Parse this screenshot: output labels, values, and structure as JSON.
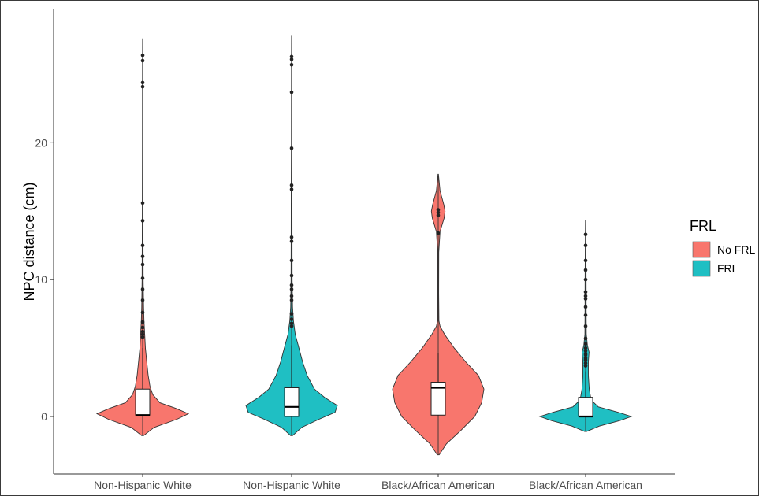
{
  "chart_data": {
    "type": "violin",
    "ylabel": "NPC distance (cm)",
    "xlabel": "",
    "ylim": [
      -4.2,
      29.8
    ],
    "yticks": [
      0,
      10,
      20
    ],
    "grid": false,
    "legend": {
      "title": "FRL",
      "placement": "right",
      "entries": [
        "No FRL",
        "FRL"
      ]
    },
    "colors": {
      "No FRL": "#F8766D",
      "FRL": "#1FBFC3"
    },
    "categories": [
      "Non-Hispanic White",
      "Non-Hispanic White",
      "Black/African American",
      "Black/African American"
    ],
    "groups": [
      {
        "category": "Non-Hispanic White",
        "fill": "No FRL",
        "range": [
          -1.4,
          27.6
        ],
        "box": {
          "q1": 0.1,
          "median": 0.1,
          "q3": 2.0,
          "whisker_low": 0.0,
          "whisker_high": 5.0
        },
        "density": [
          [
            -1.4,
            0.02
          ],
          [
            -0.8,
            0.25
          ],
          [
            -0.2,
            0.75
          ],
          [
            0.2,
            1.0
          ],
          [
            0.6,
            0.72
          ],
          [
            1.0,
            0.38
          ],
          [
            1.6,
            0.22
          ],
          [
            2.2,
            0.16
          ],
          [
            3.0,
            0.12
          ],
          [
            4.0,
            0.09
          ],
          [
            5.0,
            0.06
          ],
          [
            6.0,
            0.045
          ],
          [
            7.0,
            0.03
          ],
          [
            8.0,
            0.02
          ],
          [
            10.0,
            0.012
          ],
          [
            14.0,
            0.008
          ],
          [
            20.0,
            0.006
          ],
          [
            26.0,
            0.004
          ],
          [
            27.6,
            0.002
          ]
        ],
        "outliers": [
          26.4,
          26.0,
          24.4,
          24.1,
          15.6,
          14.3,
          12.5,
          11.7,
          11.1,
          10.1,
          9.3,
          8.5,
          7.6,
          6.9,
          6.5,
          6.2,
          6.0,
          5.8
        ]
      },
      {
        "category": "Non-Hispanic White",
        "fill": "FRL",
        "range": [
          -1.4,
          27.8
        ],
        "box": {
          "q1": 0.0,
          "median": 0.7,
          "q3": 2.1,
          "whisker_low": 0.0,
          "whisker_high": 5.2
        },
        "density": [
          [
            -1.4,
            0.02
          ],
          [
            -0.8,
            0.22
          ],
          [
            -0.2,
            0.6
          ],
          [
            0.3,
            0.95
          ],
          [
            0.8,
            1.0
          ],
          [
            1.4,
            0.72
          ],
          [
            2.0,
            0.5
          ],
          [
            3.0,
            0.34
          ],
          [
            4.0,
            0.24
          ],
          [
            5.0,
            0.16
          ],
          [
            6.0,
            0.08
          ],
          [
            7.0,
            0.04
          ],
          [
            8.0,
            0.02
          ],
          [
            10.0,
            0.012
          ],
          [
            13.0,
            0.01
          ],
          [
            17.0,
            0.008
          ],
          [
            20.0,
            0.006
          ],
          [
            26.0,
            0.004
          ],
          [
            27.8,
            0.002
          ]
        ],
        "outliers": [
          26.3,
          26.1,
          25.7,
          23.7,
          19.6,
          16.9,
          16.6,
          13.1,
          12.8,
          11.4,
          10.3,
          9.6,
          9.3,
          8.8,
          8.5,
          7.5,
          7.1,
          6.8,
          6.6
        ]
      },
      {
        "category": "Black/African American",
        "fill": "No FRL",
        "range": [
          -2.8,
          17.7
        ],
        "box": {
          "q1": 0.1,
          "median": 2.1,
          "q3": 2.5,
          "whisker_low": 0.0,
          "whisker_high": 4.6
        },
        "density": [
          [
            -2.8,
            0.02
          ],
          [
            -2.0,
            0.18
          ],
          [
            -1.0,
            0.5
          ],
          [
            0.0,
            0.8
          ],
          [
            1.0,
            0.95
          ],
          [
            2.0,
            1.0
          ],
          [
            3.0,
            0.88
          ],
          [
            4.0,
            0.6
          ],
          [
            5.0,
            0.35
          ],
          [
            6.0,
            0.14
          ],
          [
            6.6,
            0.04
          ],
          [
            7.0,
            0.015
          ],
          [
            9.0,
            0.01
          ],
          [
            12.0,
            0.012
          ],
          [
            13.5,
            0.04
          ],
          [
            14.5,
            0.13
          ],
          [
            15.0,
            0.15
          ],
          [
            15.5,
            0.12
          ],
          [
            16.5,
            0.04
          ],
          [
            17.7,
            0.005
          ]
        ],
        "outliers": [
          15.1,
          14.9,
          14.7,
          13.4
        ]
      },
      {
        "category": "Black/African American",
        "fill": "FRL",
        "range": [
          -1.1,
          14.3
        ],
        "box": {
          "q1": 0.0,
          "median": 0.0,
          "q3": 1.4,
          "whisker_low": 0.0,
          "whisker_high": 3.3
        },
        "density": [
          [
            -1.1,
            0.02
          ],
          [
            -0.7,
            0.3
          ],
          [
            -0.3,
            0.75
          ],
          [
            0.0,
            1.0
          ],
          [
            0.3,
            0.72
          ],
          [
            0.7,
            0.28
          ],
          [
            1.2,
            0.12
          ],
          [
            2.0,
            0.08
          ],
          [
            3.0,
            0.06
          ],
          [
            4.0,
            0.06
          ],
          [
            4.7,
            0.075
          ],
          [
            5.2,
            0.04
          ],
          [
            6.0,
            0.015
          ],
          [
            8.0,
            0.012
          ],
          [
            9.5,
            0.012
          ],
          [
            12.0,
            0.008
          ],
          [
            14.3,
            0.003
          ]
        ],
        "outliers": [
          13.3,
          12.5,
          11.4,
          10.7,
          10.0,
          9.1,
          8.8,
          8.6,
          8.0,
          7.4,
          6.6,
          5.7,
          5.3,
          5.0,
          4.8,
          4.6,
          4.5,
          4.3,
          4.2,
          4.1,
          3.9,
          3.7
        ]
      }
    ]
  }
}
